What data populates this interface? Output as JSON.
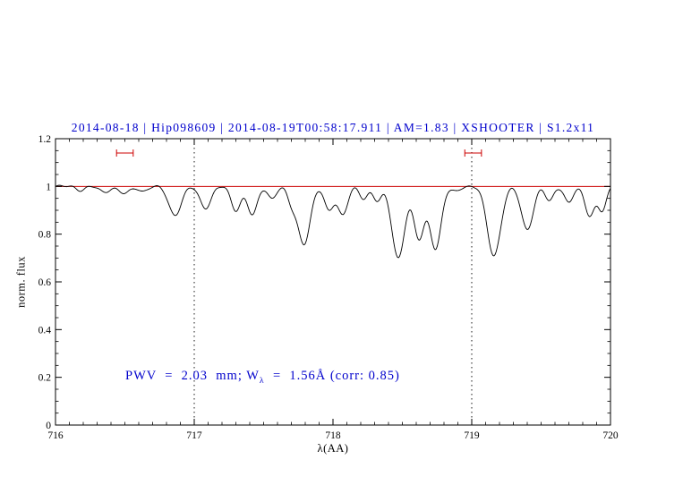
{
  "annotation": {
    "prefix": "PWV  =  2.03  mm; W",
    "subscript": "λ",
    "suffix": "  =  1.56Å (corr: 0.85)",
    "color": "#0000cc"
  },
  "chart_data": {
    "type": "line",
    "title": "2014-08-18 | Hip098609 | 2014-08-19T00:58:17.911 | AM=1.83 | XSHOOTER | S1.2x11",
    "title_color": "#0000cc",
    "xlabel": "λ(AA)",
    "ylabel": "norm. flux",
    "xlim": [
      716,
      720
    ],
    "ylim": [
      0,
      1.2
    ],
    "xticks": [
      716,
      717,
      718,
      719,
      720
    ],
    "xtick_labels": [
      "716",
      "717",
      "718",
      "719",
      "720"
    ],
    "x_minor_step": 0.1,
    "yticks": [
      0,
      0.2,
      0.4,
      0.6,
      0.8,
      1,
      1.2
    ],
    "ytick_labels": [
      "0",
      "0.2",
      "0.4",
      "0.6",
      "0.8",
      "1",
      "1.2"
    ],
    "y_minor_step": 0.05,
    "grid": false,
    "series_color": "#000000",
    "continuum_level": 1.0,
    "reference_line_y": 1.0,
    "reference_line_color": "#cc0000",
    "dotted_vlines": [
      717,
      719
    ],
    "range_markers": [
      {
        "x1": 716.44,
        "x2": 716.56,
        "y": 1.14
      },
      {
        "x1": 718.95,
        "x2": 719.07,
        "y": 1.14
      }
    ],
    "x_sample_step": 0.008,
    "absorption_lines": [
      {
        "center": 716.18,
        "depth": 0.015,
        "sigma": 0.03
      },
      {
        "center": 716.35,
        "depth": 0.025,
        "sigma": 0.035
      },
      {
        "center": 716.5,
        "depth": 0.03,
        "sigma": 0.04
      },
      {
        "center": 716.63,
        "depth": 0.02,
        "sigma": 0.03
      },
      {
        "center": 716.86,
        "depth": 0.12,
        "sigma": 0.045
      },
      {
        "center": 717.08,
        "depth": 0.09,
        "sigma": 0.04
      },
      {
        "center": 717.3,
        "depth": 0.1,
        "sigma": 0.035
      },
      {
        "center": 717.42,
        "depth": 0.12,
        "sigma": 0.035
      },
      {
        "center": 717.56,
        "depth": 0.05,
        "sigma": 0.03
      },
      {
        "center": 717.7,
        "depth": 0.06,
        "sigma": 0.03
      },
      {
        "center": 717.79,
        "depth": 0.24,
        "sigma": 0.045
      },
      {
        "center": 717.97,
        "depth": 0.1,
        "sigma": 0.032
      },
      {
        "center": 718.07,
        "depth": 0.12,
        "sigma": 0.035
      },
      {
        "center": 718.22,
        "depth": 0.05,
        "sigma": 0.03
      },
      {
        "center": 718.32,
        "depth": 0.06,
        "sigma": 0.03
      },
      {
        "center": 718.47,
        "depth": 0.3,
        "sigma": 0.045
      },
      {
        "center": 718.62,
        "depth": 0.22,
        "sigma": 0.038
      },
      {
        "center": 718.74,
        "depth": 0.26,
        "sigma": 0.04
      },
      {
        "center": 718.88,
        "depth": 0.02,
        "sigma": 0.03
      },
      {
        "center": 719.16,
        "depth": 0.29,
        "sigma": 0.048
      },
      {
        "center": 719.4,
        "depth": 0.18,
        "sigma": 0.042
      },
      {
        "center": 719.56,
        "depth": 0.06,
        "sigma": 0.03
      },
      {
        "center": 719.7,
        "depth": 0.07,
        "sigma": 0.03
      },
      {
        "center": 719.85,
        "depth": 0.12,
        "sigma": 0.035
      },
      {
        "center": 719.94,
        "depth": 0.1,
        "sigma": 0.03
      }
    ]
  }
}
